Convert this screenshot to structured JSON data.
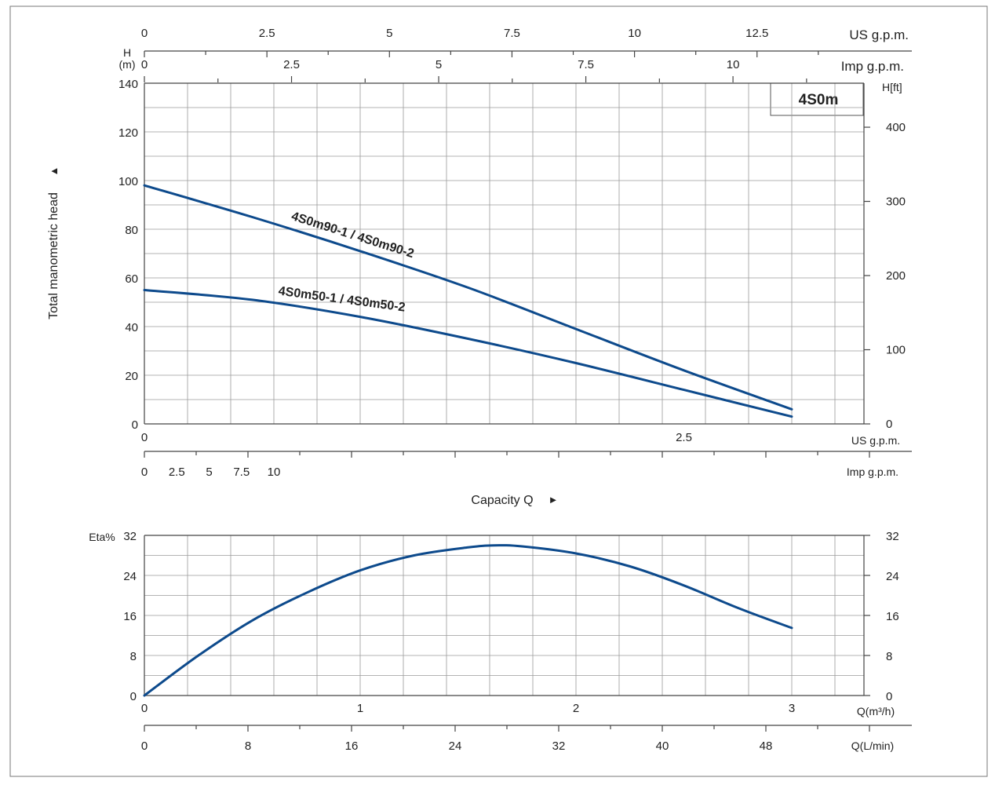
{
  "chart_data": [
    {
      "type": "line",
      "title": "4S0m",
      "ylabel": "Total manometric head",
      "ylabel_arrow": "▲",
      "ylabel_unit_line1": "H",
      "ylabel_unit_line2": "(m)",
      "y2label": "H[ft]",
      "xlabel": "Capacity Q",
      "xlabel_arrow": "►",
      "xlim": [
        0,
        3.33
      ],
      "ylim": [
        0,
        140
      ],
      "y_ticks": [
        "0",
        "20",
        "40",
        "60",
        "80",
        "100",
        "120",
        "140"
      ],
      "y2_ticks": [
        "0",
        "100",
        "200",
        "300",
        "400"
      ],
      "x_axes": [
        {
          "unit": "US g.p.m.",
          "ticks": [
            "0",
            "2.5",
            "5",
            "7.5",
            "10",
            "12.5"
          ]
        },
        {
          "unit": "Imp g.p.m.",
          "ticks": [
            "0",
            "2.5",
            "5",
            "7.5",
            "10"
          ]
        },
        {
          "unit": "Q(m³/h)",
          "ticks": [
            "0",
            "1",
            "2",
            "3"
          ]
        },
        {
          "unit": "Q(L/min)",
          "ticks": [
            "0",
            "8",
            "16",
            "24",
            "32",
            "40",
            "48"
          ]
        }
      ],
      "series": [
        {
          "name": "4S0m90-1 / 4S0m90-2",
          "x": [
            0,
            0.5,
            1.0,
            1.5,
            2.0,
            2.5,
            3.0
          ],
          "values": [
            98,
            85,
            71,
            56,
            39,
            22,
            6
          ]
        },
        {
          "name": "4S0m50-1 / 4S0m50-2",
          "x": [
            0,
            0.5,
            1.0,
            1.5,
            2.0,
            2.5,
            3.0
          ],
          "values": [
            55,
            51,
            44,
            35,
            25,
            14,
            3
          ]
        }
      ]
    },
    {
      "type": "line",
      "ylabel": "Eta%",
      "xlim": [
        0,
        3.33
      ],
      "ylim": [
        0,
        32
      ],
      "y_ticks": [
        "0",
        "8",
        "16",
        "24",
        "32"
      ],
      "x_axes": [
        {
          "unit": "Q(m³/h)",
          "ticks": [
            "0",
            "1",
            "2",
            "3"
          ]
        },
        {
          "unit": "Q(L/min)",
          "ticks": [
            "0",
            "8",
            "16",
            "24",
            "32",
            "40",
            "48"
          ]
        }
      ],
      "series": [
        {
          "name": "Eta",
          "x": [
            0,
            0.25,
            0.5,
            0.75,
            1.0,
            1.25,
            1.5,
            1.62,
            1.75,
            2.0,
            2.25,
            2.5,
            2.75,
            3.0
          ],
          "values": [
            0,
            8,
            15,
            20.5,
            25,
            28,
            29.6,
            30,
            29.8,
            28.4,
            25.8,
            22,
            17.5,
            13.5
          ]
        }
      ]
    }
  ]
}
